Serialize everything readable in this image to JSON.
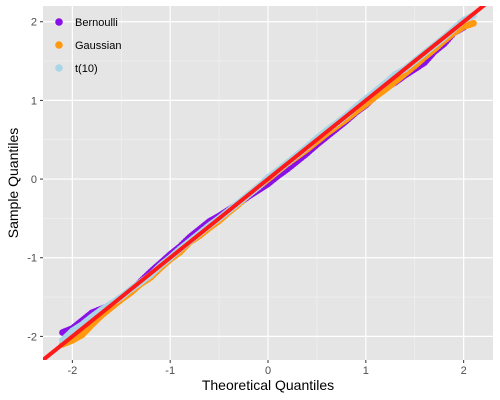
{
  "chart_data": {
    "type": "scatter",
    "title": "",
    "xlabel": "Theoretical Quantiles",
    "ylabel": "Sample Quantiles",
    "xlim": [
      -2.3,
      2.3
    ],
    "ylim": [
      -2.3,
      2.2
    ],
    "x_ticks": [
      -2,
      -1,
      0,
      1,
      2
    ],
    "x_tick_labels": [
      "-2",
      "-1",
      "0",
      "1",
      "2"
    ],
    "y_ticks": [
      -2,
      -1,
      0,
      1,
      2
    ],
    "y_tick_labels": [
      "-2",
      "-1",
      "0",
      "1",
      "2"
    ],
    "grid": true,
    "legend_position": "top-left",
    "background_color": "#e5e5e5",
    "series": [
      {
        "name": "Bernoulli",
        "color": "#8a10e8",
        "points": [
          [
            -2.1,
            -1.95
          ],
          [
            -2.0,
            -1.9
          ],
          [
            -1.9,
            -1.8
          ],
          [
            -1.8,
            -1.7
          ],
          [
            -1.7,
            -1.65
          ],
          [
            -1.6,
            -1.6
          ],
          [
            -1.5,
            -1.52
          ],
          [
            -1.4,
            -1.42
          ],
          [
            -1.3,
            -1.3
          ],
          [
            -1.2,
            -1.18
          ],
          [
            -1.1,
            -1.07
          ],
          [
            -1.0,
            -0.96
          ],
          [
            -0.9,
            -0.86
          ],
          [
            -0.8,
            -0.74
          ],
          [
            -0.7,
            -0.64
          ],
          [
            -0.6,
            -0.54
          ],
          [
            -0.5,
            -0.47
          ],
          [
            -0.4,
            -0.39
          ],
          [
            -0.3,
            -0.31
          ],
          [
            -0.2,
            -0.22
          ],
          [
            -0.1,
            -0.14
          ],
          [
            0.0,
            -0.06
          ],
          [
            0.1,
            0.04
          ],
          [
            0.2,
            0.13
          ],
          [
            0.3,
            0.23
          ],
          [
            0.4,
            0.33
          ],
          [
            0.5,
            0.44
          ],
          [
            0.6,
            0.54
          ],
          [
            0.7,
            0.64
          ],
          [
            0.8,
            0.74
          ],
          [
            0.9,
            0.85
          ],
          [
            1.0,
            0.94
          ],
          [
            1.1,
            1.06
          ],
          [
            1.2,
            1.16
          ],
          [
            1.3,
            1.23
          ],
          [
            1.4,
            1.32
          ],
          [
            1.5,
            1.4
          ],
          [
            1.6,
            1.48
          ],
          [
            1.7,
            1.62
          ],
          [
            1.8,
            1.72
          ],
          [
            1.9,
            1.86
          ],
          [
            2.0,
            1.93
          ]
        ]
      },
      {
        "name": "Gaussian",
        "color": "#ff9a10",
        "points": [
          [
            -2.1,
            -2.1
          ],
          [
            -2.0,
            -2.05
          ],
          [
            -1.9,
            -1.98
          ],
          [
            -1.8,
            -1.85
          ],
          [
            -1.7,
            -1.73
          ],
          [
            -1.6,
            -1.63
          ],
          [
            -1.5,
            -1.53
          ],
          [
            -1.4,
            -1.44
          ],
          [
            -1.3,
            -1.33
          ],
          [
            -1.2,
            -1.25
          ],
          [
            -1.1,
            -1.13
          ],
          [
            -1.0,
            -1.02
          ],
          [
            -0.9,
            -0.93
          ],
          [
            -0.8,
            -0.8
          ],
          [
            -0.7,
            -0.72
          ],
          [
            -0.6,
            -0.62
          ],
          [
            -0.5,
            -0.53
          ],
          [
            -0.4,
            -0.42
          ],
          [
            -0.3,
            -0.32
          ],
          [
            -0.2,
            -0.2
          ],
          [
            -0.1,
            -0.1
          ],
          [
            0.0,
            0.0
          ],
          [
            0.1,
            0.1
          ],
          [
            0.2,
            0.2
          ],
          [
            0.3,
            0.29
          ],
          [
            0.4,
            0.38
          ],
          [
            0.5,
            0.48
          ],
          [
            0.6,
            0.58
          ],
          [
            0.7,
            0.67
          ],
          [
            0.8,
            0.76
          ],
          [
            0.9,
            0.86
          ],
          [
            1.0,
            0.95
          ],
          [
            1.1,
            1.05
          ],
          [
            1.2,
            1.14
          ],
          [
            1.3,
            1.24
          ],
          [
            1.4,
            1.34
          ],
          [
            1.5,
            1.44
          ],
          [
            1.6,
            1.55
          ],
          [
            1.7,
            1.65
          ],
          [
            1.8,
            1.76
          ],
          [
            1.9,
            1.86
          ],
          [
            2.0,
            1.94
          ],
          [
            2.1,
            1.98
          ]
        ]
      },
      {
        "name": "t(10)",
        "color": "#a8d6e6",
        "points": [
          [
            -2.1,
            -2.05
          ],
          [
            -2.0,
            -1.93
          ],
          [
            -1.9,
            -1.85
          ],
          [
            -1.8,
            -1.75
          ],
          [
            -1.7,
            -1.66
          ],
          [
            -1.6,
            -1.58
          ],
          [
            -1.5,
            -1.5
          ],
          [
            -1.4,
            -1.4
          ],
          [
            -1.3,
            -1.31
          ],
          [
            -1.2,
            -1.22
          ],
          [
            -1.1,
            -1.1
          ],
          [
            -1.0,
            -1.0
          ],
          [
            -0.9,
            -0.89
          ],
          [
            -0.8,
            -0.79
          ],
          [
            -0.7,
            -0.69
          ],
          [
            -0.6,
            -0.59
          ],
          [
            -0.5,
            -0.5
          ],
          [
            -0.4,
            -0.4
          ],
          [
            -0.3,
            -0.3
          ],
          [
            -0.2,
            -0.2
          ],
          [
            -0.1,
            -0.1
          ],
          [
            0.0,
            0.02
          ],
          [
            0.1,
            0.11
          ],
          [
            0.2,
            0.21
          ],
          [
            0.3,
            0.31
          ],
          [
            0.4,
            0.41
          ],
          [
            0.5,
            0.52
          ],
          [
            0.6,
            0.62
          ],
          [
            0.7,
            0.71
          ],
          [
            0.8,
            0.81
          ],
          [
            0.9,
            0.92
          ],
          [
            1.0,
            1.02
          ],
          [
            1.1,
            1.12
          ],
          [
            1.2,
            1.22
          ],
          [
            1.3,
            1.33
          ],
          [
            1.4,
            1.4
          ],
          [
            1.5,
            1.5
          ],
          [
            1.6,
            1.6
          ],
          [
            1.7,
            1.7
          ],
          [
            1.8,
            1.8
          ],
          [
            1.9,
            1.91
          ],
          [
            2.0,
            2.02
          ],
          [
            2.1,
            2.08
          ]
        ]
      }
    ],
    "reference_line": {
      "color": "#ff1a1a",
      "slope": 1,
      "intercept": 0
    }
  }
}
